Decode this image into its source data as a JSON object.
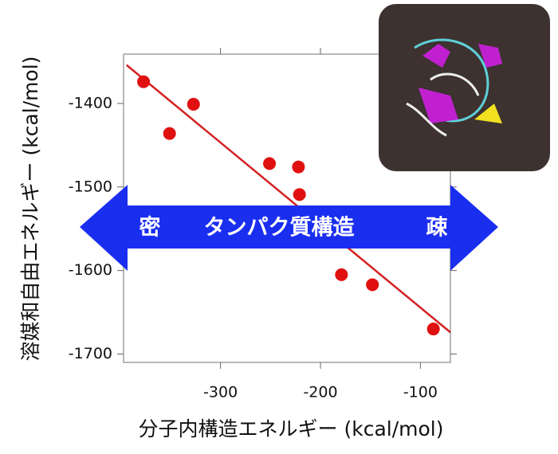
{
  "chart_data": {
    "type": "scatter",
    "xlabel": "分子内構造エネルギー (kcal/mol)",
    "ylabel": "溶媒和自由エネルギー (kcal/mol)",
    "x": [
      -377,
      -351,
      -327,
      -251,
      -222,
      -221,
      -179,
      -148,
      -87
    ],
    "series": [
      {
        "color": "#e01010",
        "values": [
          -1374,
          -1436,
          -1401,
          -1472,
          -1476,
          -1509,
          -1605,
          -1617,
          -1670
        ]
      }
    ],
    "fit_line": {
      "x": [
        -394,
        -70
      ],
      "y": [
        -1354,
        -1674
      ],
      "color": "#d42020"
    },
    "xlim": [
      -397,
      -70
    ],
    "xticks": [
      -300,
      -200,
      -100
    ],
    "ylim": [
      -1710,
      -1341
    ],
    "yticks": [
      -1400,
      -1500,
      -1600,
      -1700
    ]
  },
  "annotations": [
    "密",
    "タンパク質構造",
    "疎"
  ]
}
